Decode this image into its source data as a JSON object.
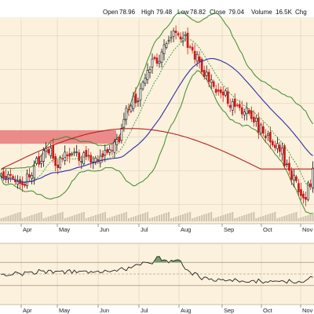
{
  "quote": {
    "open_label": "Open",
    "open": "78.96",
    "high_label": "High",
    "high": "79.48",
    "low_label": "Low",
    "low": "78.82",
    "close_label": "Close",
    "close": "79.04",
    "volume_label": "Volume",
    "volume": "16.5K",
    "chg_label": "Chg"
  },
  "colors": {
    "price_panel_bg": "#fbf1dc",
    "lower_panel_bg": "#fbf1dc",
    "up_candle": "#111111",
    "down_candle": "#cc1a1a",
    "ma_short": "#3a9a3a",
    "ma_mid": "#2b2fa8",
    "ma_long": "#b22222",
    "bollinger": "#3d8a2e",
    "resistance_zone": "#e8797b",
    "oscillator": "#222222",
    "grid": "#d8cbb0"
  },
  "chart_data": [
    {
      "type": "candlestick",
      "title": "",
      "months": [
        "Apr",
        "May",
        "Jun",
        "Jul",
        "Aug",
        "Sep",
        "Oct",
        "Nov"
      ],
      "ylim": [
        40,
        100
      ],
      "grid": true,
      "resistance_zone": [
        63,
        67
      ],
      "candles_close": [
        54.0,
        52.9,
        52.6,
        53.9,
        53.6,
        52.8,
        51.7,
        51.7,
        51.2,
        50.8,
        50.6,
        54.1,
        53.1,
        53.6,
        56.4,
        58.7,
        56.9,
        57.8,
        61.0,
        61.8,
        60.2,
        61.8,
        58.7,
        56.5,
        55.9,
        58.9,
        58.5,
        60.5,
        59.4,
        59.3,
        60.0,
        60.5,
        60.6,
        58.0,
        57.8,
        60.3,
        59.1,
        59.3,
        57.5,
        57.6,
        58.8,
        58.0,
        59.3,
        59.1,
        61.1,
        60.4,
        61.3,
        60.9,
        63.5,
        64.3,
        63.5,
        67.6,
        70.2,
        73.5,
        73.2,
        74.2,
        77.0,
        75.1,
        75.7,
        79.3,
        81.2,
        82.5,
        84.8,
        85.0,
        88.1,
        88.2,
        86.8,
        87.4,
        90.2,
        92.3,
        92.7,
        93.7,
        94.5,
        96.4,
        95.9,
        95.2,
        94.0,
        94.2,
        95.3,
        91.5,
        91.6,
        90.7,
        88.0,
        89.5,
        87.3,
        84.3,
        82.9,
        84.2,
        81.4,
        81.9,
        79.9,
        78.2,
        78.5,
        78.1,
        77.4,
        78.7,
        74.9,
        73.7,
        75.5,
        74.0,
        74.4,
        73.7,
        71.8,
        72.4,
        73.6,
        72.0,
        70.4,
        69.4,
        70.6,
        66.4,
        68.6,
        66.1,
        64.7,
        65.9,
        63.5,
        62.6,
        61.8,
        63.1,
        60.7,
        61.7,
        56.4,
        57.0,
        55.1,
        52.4,
        53.7,
        52.0,
        48.7,
        47.6,
        46.9,
        46.5,
        51.4,
        50.3,
        55.8
      ],
      "ma_short_visible": true,
      "ma_mid_visible": true,
      "ma_long_visible": true,
      "bollinger_visible": true
    },
    {
      "type": "line",
      "title": "",
      "series": [
        {
          "values": [
            49.0,
            50.0,
            46.8,
            47.4,
            48.1,
            49.1,
            53.8,
            52.2,
            50.4,
            47.1,
            53.9,
            52.8,
            53.7,
            53.6,
            49.4,
            51.1,
            57.6,
            55.3,
            55.4,
            50.7,
            56.3,
            56.3,
            51.1,
            54.9,
            54.6,
            54.9,
            55.5,
            50.2,
            55.6,
            57.3,
            51.1,
            56.6,
            52.0,
            54.4,
            54.8,
            55.1,
            55.1,
            51.1,
            54.4,
            52.5,
            54.0,
            55.3,
            52.0,
            52.9,
            56.7,
            54.6,
            53.6,
            55.2,
            56.6,
            54.7,
            58.4,
            61.1,
            58.0,
            55.7,
            61.9,
            60.3,
            63.2,
            66.2,
            66.3,
            65.3,
            70.3,
            70.0,
            69.4,
            68.2,
            67.3,
            73.2,
            79.8,
            80.1,
            72.9,
            74.3,
            73.2,
            69.2,
            73.7,
            72.2,
            74.0,
            74.3,
            72.6,
            64.1,
            58.1,
            56.8,
            53.4,
            48.0,
            52.6,
            50.7,
            44.2,
            40.1,
            44.6,
            44.3,
            40.4,
            41.8,
            37.8,
            37.5,
            41.9,
            40.0,
            40.6,
            37.9,
            39.1,
            40.0,
            37.1,
            42.0,
            39.1,
            36.1,
            38.3,
            36.8,
            35.5,
            35.8,
            38.5,
            39.1,
            34.5,
            41.3,
            37.2,
            34.0,
            36.7,
            35.7,
            38.5,
            37.2,
            38.0,
            37.6,
            37.2,
            38.9,
            36.8,
            34.2,
            40.5,
            36.7,
            34.2,
            34.4,
            37.5,
            35.6,
            35.6,
            38.7,
            41.4,
            45.5,
            44.3
          ]
        }
      ],
      "ylim": [
        0,
        100
      ],
      "reference_lines": [
        30,
        50,
        70
      ],
      "grid": true
    }
  ]
}
